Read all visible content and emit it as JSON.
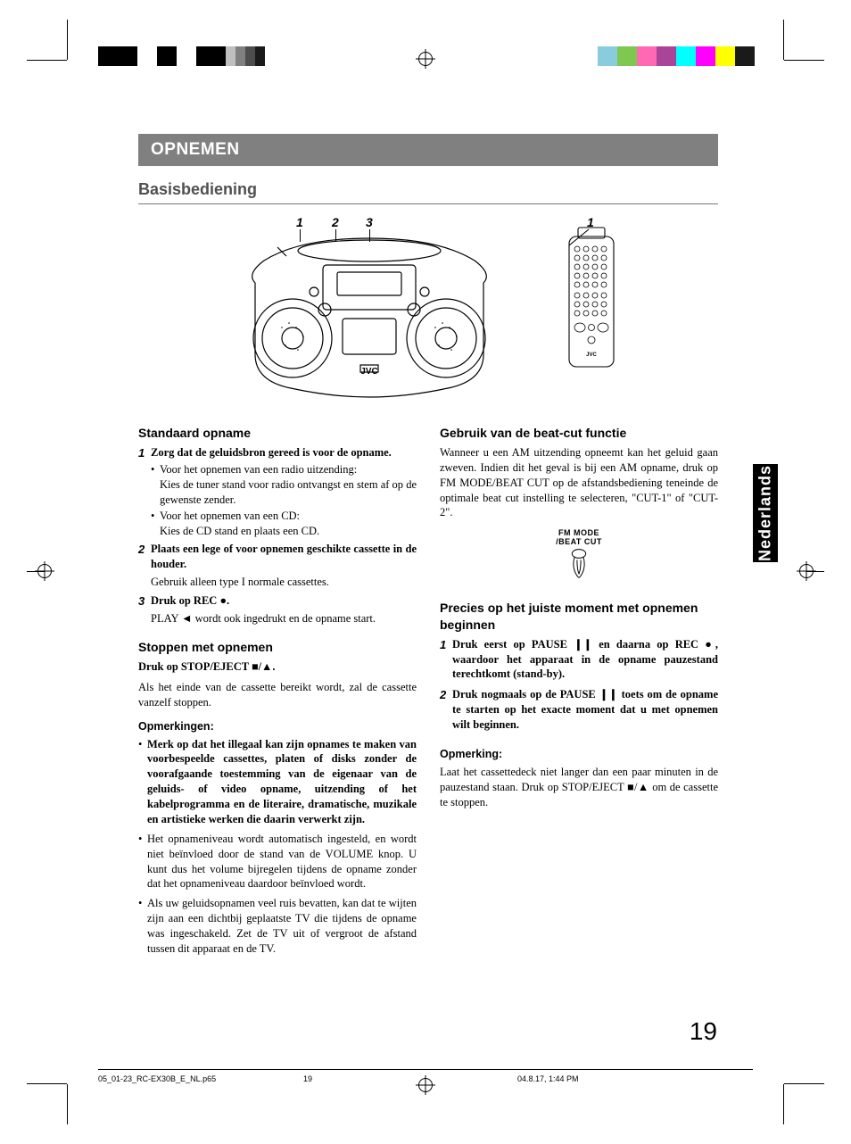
{
  "chapter_title": "OPNEMEN",
  "subtitle": "Basisbediening",
  "diagram": {
    "l1": "1",
    "l2": "2",
    "l3": "3",
    "r1": "1"
  },
  "left": {
    "h1": "Standaard opname",
    "s1": {
      "n": "1",
      "t": "Zorg dat de geluidsbron gereed is voor de opname.",
      "b1a": "Voor het opnemen van een radio uitzending:",
      "b1b": "Kies de tuner stand voor radio ontvangst en stem af op de gewenste zender.",
      "b2a": "Voor het opnemen van een CD:",
      "b2b": "Kies de CD stand en plaats een CD."
    },
    "s2": {
      "n": "2",
      "t": "Plaats een lege of voor opnemen geschikte cassette in de houder.",
      "sub": "Gebruik alleen type I normale cassettes."
    },
    "s3": {
      "n": "3",
      "t": "Druk op REC ●.",
      "sub": "PLAY ◄ wordt ook ingedrukt en de opname start."
    },
    "h2": "Stoppen met opnemen",
    "stop_bold": "Druk op STOP/EJECT ■/▲.",
    "stop_text": "Als het einde van de cassette bereikt wordt, zal de cassette vanzelf stoppen.",
    "notes_head": "Opmerkingen:",
    "n1": "Merk op dat het illegaal kan zijn opnames te maken van voorbespeelde cassettes, platen of disks zonder de voorafgaande toestemming van de eigenaar van de geluids- of video opname, uitzending of het kabelprogramma en de literaire, dramatische, muzikale en artistieke werken die daarin verwerkt zijn.",
    "n2": "Het opnameniveau wordt automatisch ingesteld, en wordt niet beïnvloed door de stand van de VOLUME knop. U kunt dus het volume bijregelen tijdens de opname zonder dat het opnameniveau daardoor beïnvloed wordt.",
    "n3": "Als uw geluidsopnamen veel ruis bevatten, kan dat te wijten zijn aan een dichtbij geplaatste TV die tijdens de opname was ingeschakeld. Zet de TV uit of vergroot de afstand tussen dit apparaat en de TV."
  },
  "right": {
    "h1": "Gebruik van de beat-cut functie",
    "p1": "Wanneer u een AM uitzending opneemt kan het geluid gaan zweven. Indien dit het geval is bij een AM opname, druk op FM MODE/BEAT CUT op de afstandsbediening teneinde de optimale beat cut instelling te selecteren, \"CUT-1\" of \"CUT-2\".",
    "icon_l1": "FM MODE",
    "icon_l2": "/BEAT CUT",
    "h2": "Precies op het juiste moment met opnemen beginnen",
    "s1": {
      "n": "1",
      "t": "Druk eerst op PAUSE ❙❙ en daarna op REC ●, waardoor het apparaat in de opname pauzestand terechtkomt (stand-by)."
    },
    "s2": {
      "n": "2",
      "t": "Druk nogmaals op de PAUSE ❙❙ toets om de opname te starten op het exacte moment dat u met opnemen wilt beginnen."
    },
    "note_head": "Opmerking:",
    "note": "Laat het cassettedeck niet langer dan een paar minuten in de pauzestand staan. Druk op STOP/EJECT ■/▲ om de cassette te stoppen."
  },
  "side_tab": "Nederlands",
  "page_number": "19",
  "footer": {
    "file": "05_01-23_RC-EX30B_E_NL.p65",
    "pg": "19",
    "ts": "04.8.17, 1:44 PM"
  },
  "colorbar_left": [
    "#000000",
    "#000000",
    "#ffffff",
    "#000000",
    "#ffffff",
    "#000000",
    "#000000",
    "#bfbfbf",
    "#808080",
    "#4d4d4d",
    "#1a1a1a"
  ],
  "colorbar_right": [
    "#1a1a1a",
    "#ffff00",
    "#ff00ff",
    "#00ffff",
    "#aa4499",
    "#ff69b4",
    "#7ec850",
    "#88ccdd"
  ]
}
